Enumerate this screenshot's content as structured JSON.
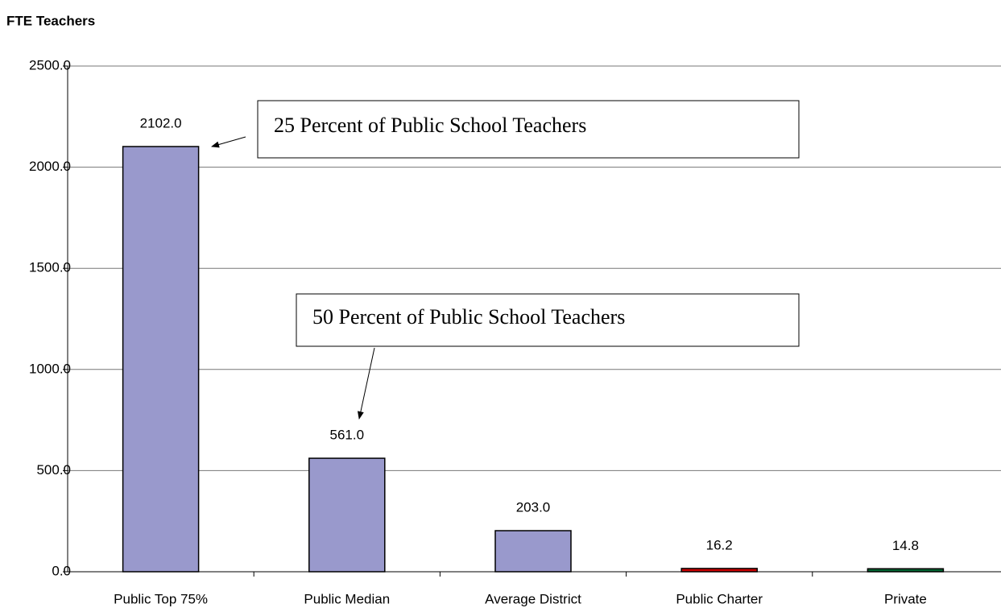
{
  "chart_data": {
    "type": "bar",
    "title": "FTE Teachers",
    "categories": [
      "Public Top 75%",
      "Public Median",
      "Average District",
      "Public Charter",
      "Private"
    ],
    "values": [
      2102,
      561,
      203,
      16.2,
      14.8
    ],
    "value_labels": [
      "2102.0",
      "561.0",
      "203.0",
      "16.2",
      "14.8"
    ],
    "colors": [
      "#9999cc",
      "#9999cc",
      "#9999cc",
      "#cc0000",
      "#006633"
    ],
    "ylim": [
      0,
      2500
    ],
    "yticks": [
      {
        "value": 0,
        "label": "0.0"
      },
      {
        "value": 500,
        "label": "500.0"
      },
      {
        "value": 1000,
        "label": "1000.0"
      },
      {
        "value": 1500,
        "label": "1500.0"
      },
      {
        "value": 2000,
        "label": "2000.0"
      },
      {
        "value": 2500,
        "label": "2500.0"
      }
    ],
    "grid": true,
    "annotations": [
      {
        "text": "25 Percent of Public School Teachers"
      },
      {
        "text": "50 Percent of Public School Teachers"
      }
    ]
  }
}
